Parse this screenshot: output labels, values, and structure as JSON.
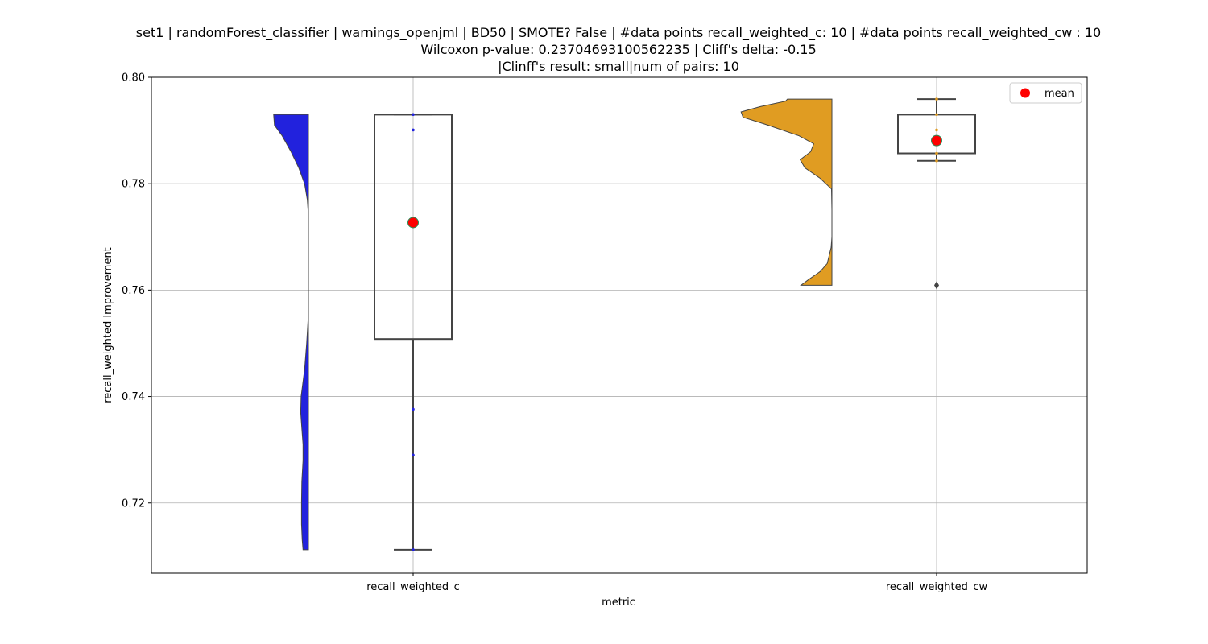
{
  "chart_data": {
    "type": "raincloud",
    "title": [
      "set1 | randomForest_classifier | warnings_openjml | BD50 | SMOTE? False | #data points recall_weighted_c: 10 | #data points recall_weighted_cw : 10",
      "Wilcoxon p-value: 0.23704693100562235 | Cliff's delta: -0.15",
      "|Clinff's result: small|num of pairs: 10"
    ],
    "xlabel": "metric",
    "ylabel": "recall_weighted Improvement",
    "categories": [
      "recall_weighted_c",
      "recall_weighted_cw"
    ],
    "ylim": [
      0.7068,
      0.8
    ],
    "yticks": [
      0.72,
      0.74,
      0.76,
      0.78,
      0.8
    ],
    "ytick_labels": [
      "0.72",
      "0.74",
      "0.76",
      "0.78",
      "0.80"
    ],
    "grid": true,
    "legend": {
      "position": "top-right",
      "entries": [
        "mean"
      ]
    },
    "series": [
      {
        "category": "recall_weighted_c",
        "color": "#2222dd",
        "box": {
          "whisker_low": 0.7112,
          "q1": 0.7508,
          "median": 0.793,
          "q3": 0.793,
          "whisker_high": 0.793
        },
        "mean": 0.7727,
        "points": [
          0.7112,
          0.729,
          0.7376,
          0.7901,
          0.793
        ],
        "outliers": [],
        "density": [
          [
            0.7112,
            0.14
          ],
          [
            0.713,
            0.16
          ],
          [
            0.716,
            0.18
          ],
          [
            0.72,
            0.18
          ],
          [
            0.724,
            0.17
          ],
          [
            0.728,
            0.14
          ],
          [
            0.731,
            0.14
          ],
          [
            0.734,
            0.17
          ],
          [
            0.737,
            0.2
          ],
          [
            0.74,
            0.19
          ],
          [
            0.745,
            0.1
          ],
          [
            0.75,
            0.045
          ],
          [
            0.755,
            0.005
          ],
          [
            0.76,
            0.0
          ],
          [
            0.765,
            0.0
          ],
          [
            0.77,
            0.0
          ],
          [
            0.774,
            0.0
          ],
          [
            0.777,
            0.03
          ],
          [
            0.78,
            0.1
          ],
          [
            0.783,
            0.25
          ],
          [
            0.786,
            0.45
          ],
          [
            0.789,
            0.68
          ],
          [
            0.791,
            0.88
          ],
          [
            0.793,
            0.9
          ]
        ]
      },
      {
        "category": "recall_weighted_cw",
        "color": "#e09c22",
        "box": {
          "whisker_low": 0.7843,
          "q1": 0.7857,
          "median": 0.793,
          "q3": 0.793,
          "whisker_high": 0.7959
        },
        "mean": 0.7881,
        "points": [
          0.7843,
          0.7857,
          0.7901,
          0.793,
          0.7959
        ],
        "outliers": [
          0.7609
        ],
        "density": [
          [
            0.7609,
            0.8
          ],
          [
            0.762,
            0.6
          ],
          [
            0.7635,
            0.3
          ],
          [
            0.765,
            0.12
          ],
          [
            0.768,
            0.02
          ],
          [
            0.77,
            0.0
          ],
          [
            0.775,
            0.0
          ],
          [
            0.779,
            0.01
          ],
          [
            0.781,
            0.3
          ],
          [
            0.783,
            0.7
          ],
          [
            0.7845,
            0.82
          ],
          [
            0.786,
            0.55
          ],
          [
            0.7875,
            0.47
          ],
          [
            0.789,
            0.85
          ],
          [
            0.791,
            1.65
          ],
          [
            0.7925,
            2.3
          ],
          [
            0.7935,
            2.35
          ],
          [
            0.7945,
            1.85
          ],
          [
            0.7955,
            1.2
          ],
          [
            0.7959,
            1.15
          ]
        ]
      }
    ]
  }
}
